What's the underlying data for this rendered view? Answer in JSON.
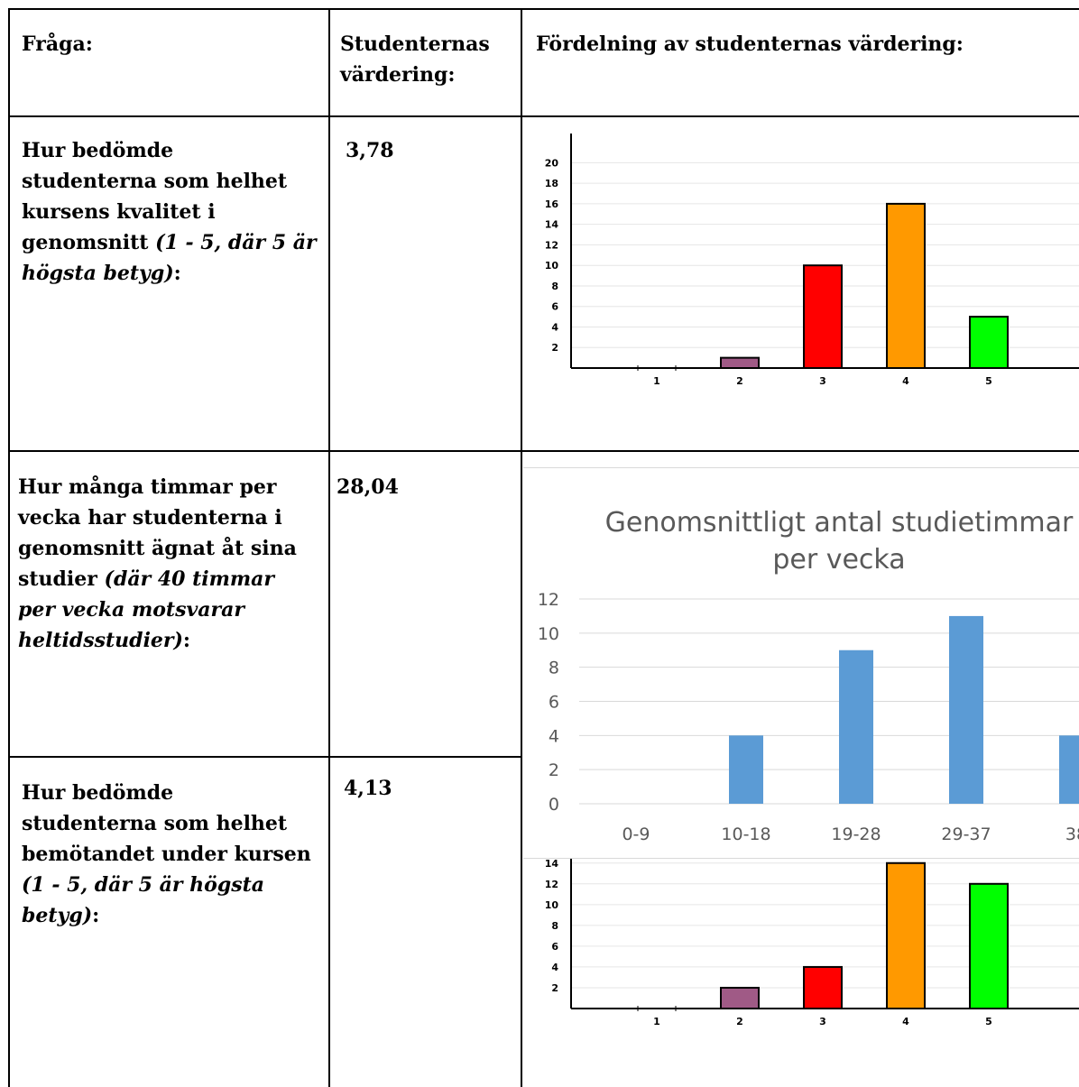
{
  "header": {
    "col1": "Fråga:",
    "col2_line1": "Studenternas",
    "col2_line2": "värdering:",
    "col3": "Fördelning av studenternas värdering:"
  },
  "rows": [
    {
      "question_lines": [
        "Hur bedömde",
        "studenterna som helhet",
        "kursens kvalitet i"
      ],
      "question_mixed": {
        "bold": "genomsnitt ",
        "italic": "(1 - 5, där 5 är"
      },
      "question_tail": {
        "italic": "högsta betyg)",
        "bold": ":"
      },
      "value": "3,78"
    },
    {
      "question_lines": [
        "Hur många timmar per",
        "vecka har studenterna i",
        "genomsnitt ägnat åt sina"
      ],
      "question_mixed": {
        "bold": "studier ",
        "italic": "(där 40 timmar"
      },
      "question_italic_lines": [
        "per vecka motsvarar"
      ],
      "question_tail": {
        "italic": "heltidsstudier)",
        "bold": ":"
      },
      "value": "28,04"
    },
    {
      "question_lines": [
        "Hur bedömde",
        "studenterna som helhet",
        "bemötandet under kursen"
      ],
      "question_italic_lines": [
        "(1 - 5, där 5 är högsta"
      ],
      "question_tail": {
        "italic": "betyg)",
        "bold": ":"
      },
      "value": "4,13"
    }
  ],
  "chart_data": [
    {
      "type": "bar",
      "categories": [
        "1",
        "2",
        "3",
        "4",
        "5"
      ],
      "values": [
        0,
        1,
        10,
        16,
        5
      ],
      "colors": [
        "#a05a86",
        "#a05a86",
        "#ff0000",
        "#ff9900",
        "#00ff00"
      ],
      "yticks": [
        "2",
        "4",
        "6",
        "8",
        "10",
        "12",
        "14",
        "16",
        "18",
        "20"
      ],
      "ylim": [
        0,
        21
      ],
      "grid": true
    },
    {
      "type": "bar",
      "title_line1": "Genomsnittligt antal studietimmar",
      "title_line2": "per vecka",
      "categories": [
        "0-9",
        "10-18",
        "19-28",
        "29-37",
        "38"
      ],
      "values": [
        0,
        4,
        9,
        11,
        4
      ],
      "color": "#5b9bd5",
      "yticks": [
        "0",
        "2",
        "4",
        "6",
        "8",
        "10",
        "12"
      ],
      "ylim": [
        0,
        12
      ],
      "grid": true
    },
    {
      "type": "bar",
      "categories": [
        "1",
        "2",
        "3",
        "4",
        "5"
      ],
      "values": [
        0,
        2,
        4,
        14,
        12
      ],
      "colors": [
        "#a05a86",
        "#a05a86",
        "#ff0000",
        "#ff9900",
        "#00ff00"
      ],
      "yticks": [
        "2",
        "4",
        "6",
        "8",
        "10",
        "12",
        "14"
      ],
      "ylim": [
        0,
        14.5
      ],
      "grid": true
    }
  ]
}
